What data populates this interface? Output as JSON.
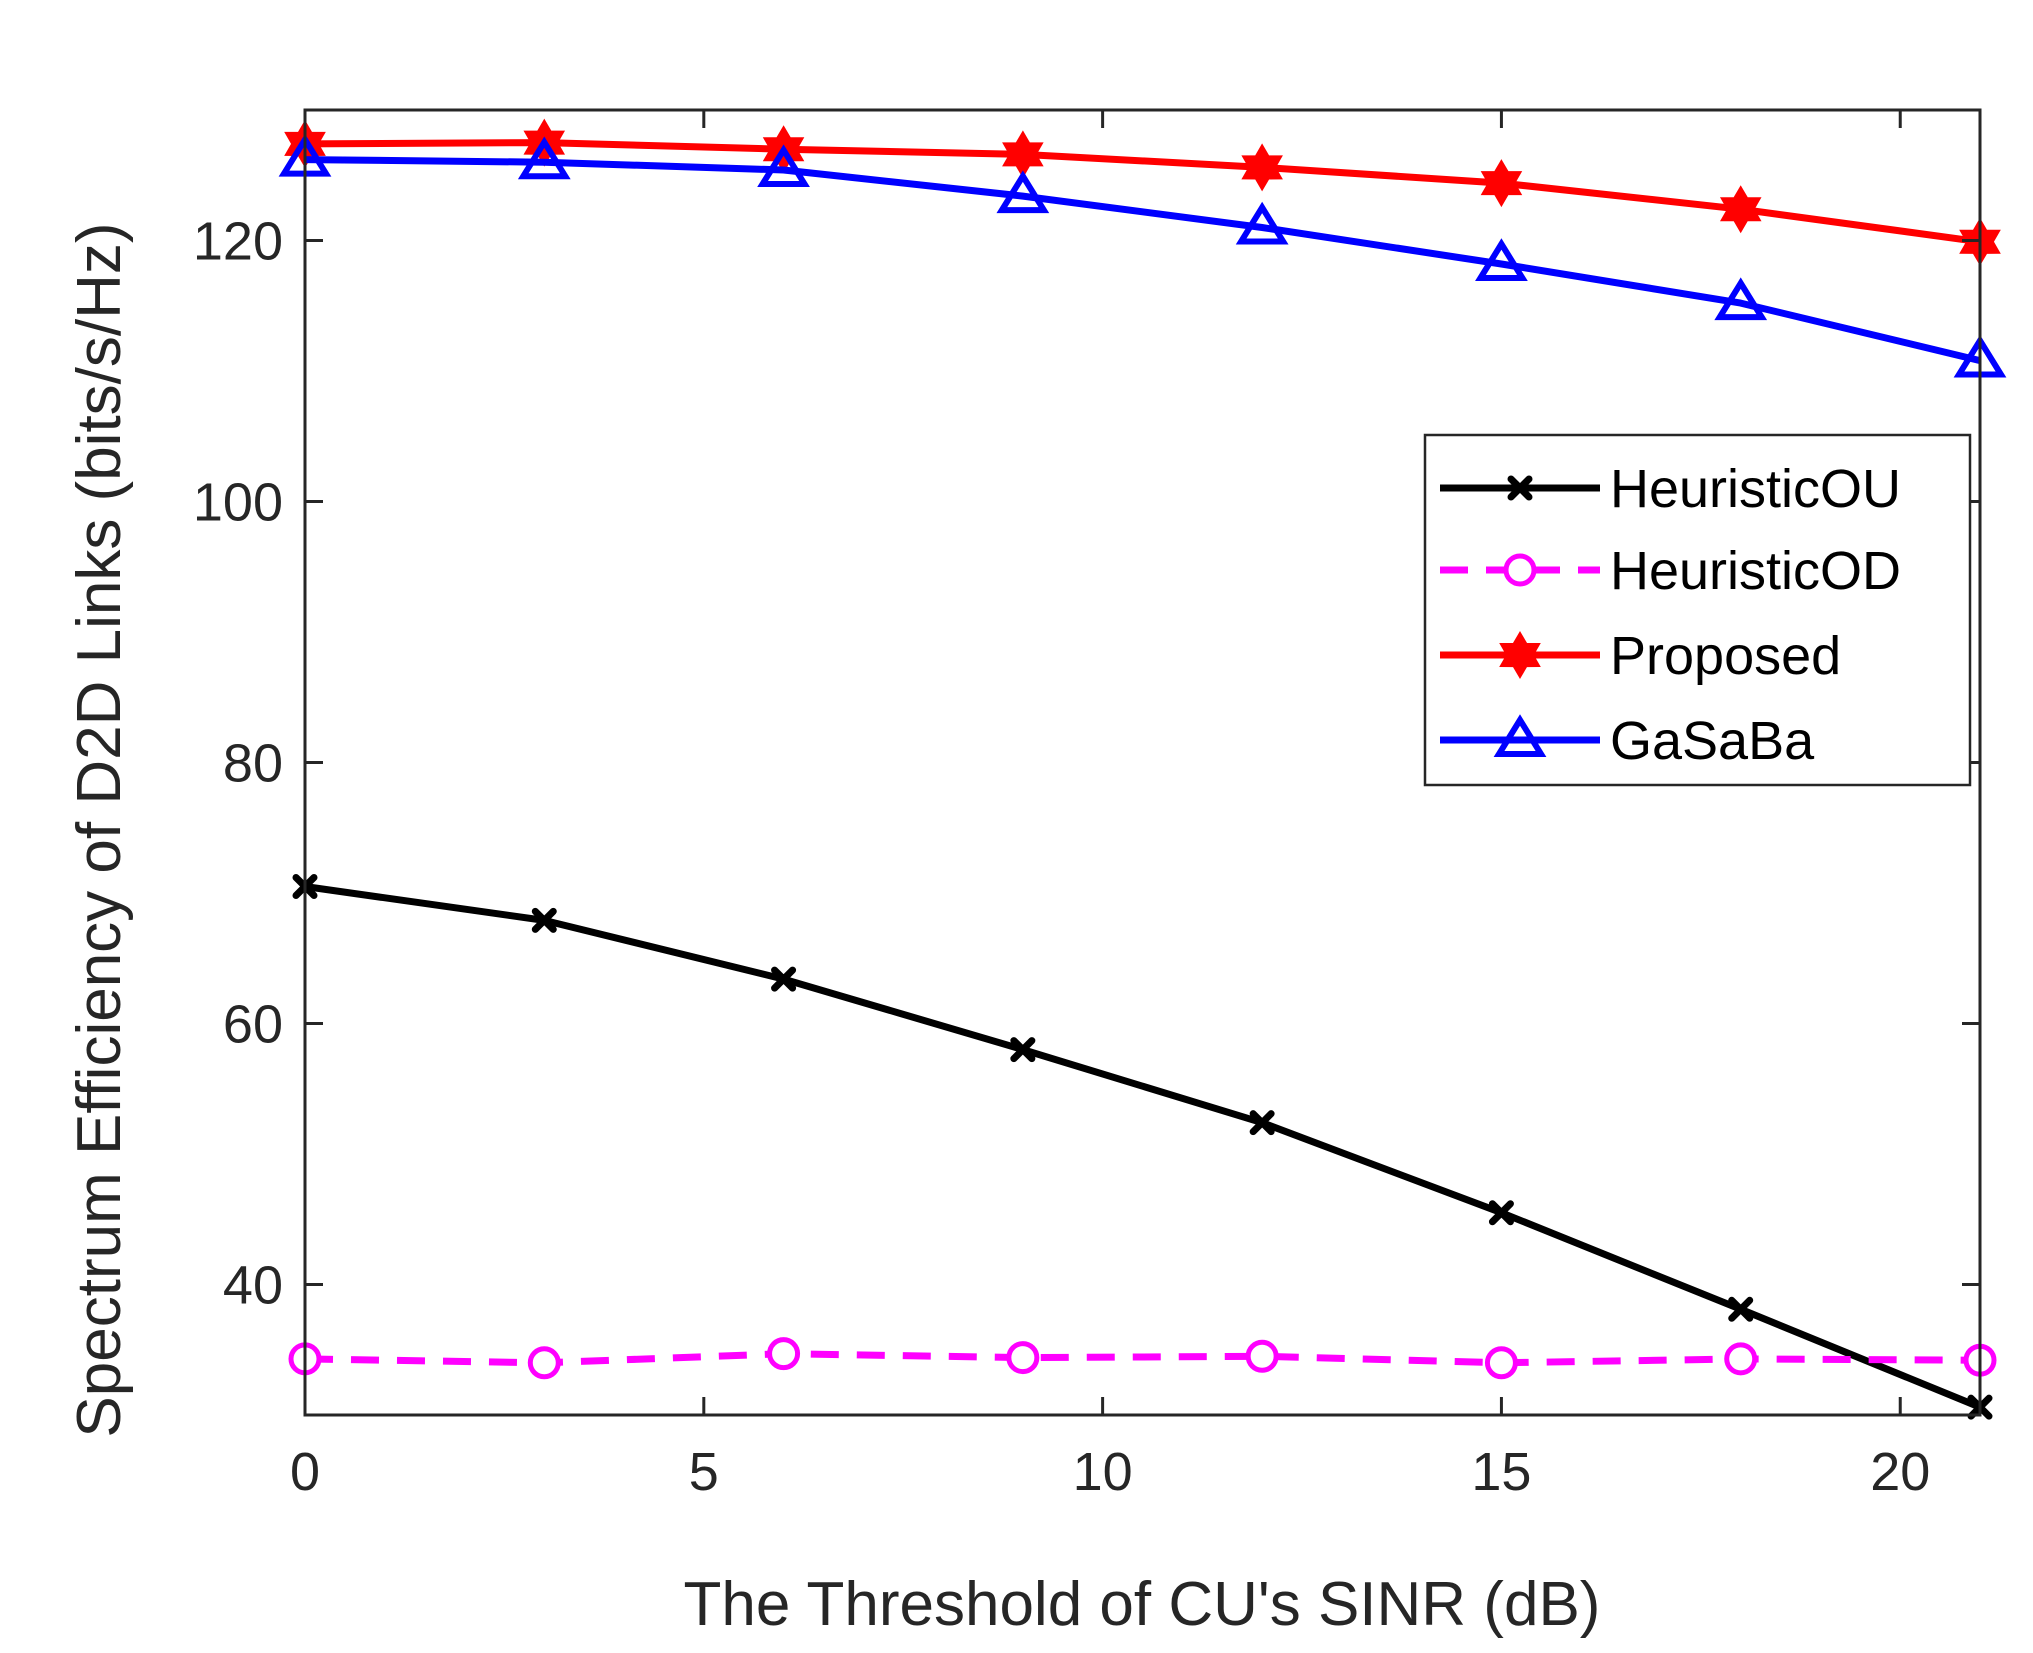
{
  "chart_data": {
    "type": "line",
    "title": "",
    "xlabel": "The Threshold of CU's SINR (dB)",
    "ylabel": "Spectrum Efficiency of D2D Links (bits/s/Hz)",
    "xlim": [
      0,
      21
    ],
    "ylim": [
      30,
      130
    ],
    "x_ticks": [
      0,
      5,
      10,
      15,
      20
    ],
    "y_ticks": [
      40,
      60,
      80,
      100,
      120
    ],
    "grid": false,
    "legend_position": "right",
    "x": [
      0,
      3,
      6,
      9,
      12,
      15,
      18,
      21
    ],
    "series": [
      {
        "name": "HeuristicOU",
        "color": "#000000",
        "line": "solid",
        "marker": "x",
        "values": [
          70.5,
          67.9,
          63.4,
          58.0,
          52.4,
          45.5,
          38.1,
          30.6
        ]
      },
      {
        "name": "HeuristicOD",
        "color": "#ff00ff",
        "line": "dashed",
        "marker": "circle",
        "values": [
          34.3,
          34.0,
          34.7,
          34.4,
          34.5,
          34.0,
          34.3,
          34.2
        ]
      },
      {
        "name": "Proposed",
        "color": "#ff0000",
        "line": "solid",
        "marker": "hexagram",
        "values": [
          127.4,
          127.5,
          127.0,
          126.6,
          125.6,
          124.4,
          122.4,
          119.9
        ]
      },
      {
        "name": "GaSaBa",
        "color": "#0000ff",
        "line": "solid",
        "marker": "triangle",
        "values": [
          126.2,
          126.0,
          125.4,
          123.4,
          121.0,
          118.2,
          115.2,
          110.8
        ]
      }
    ]
  }
}
